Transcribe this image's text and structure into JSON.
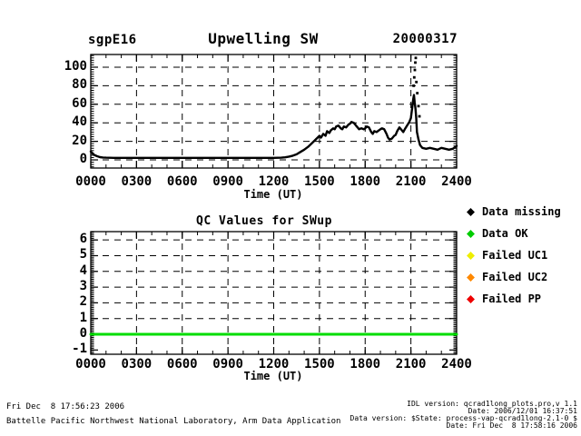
{
  "header": {
    "site": "sgpE16",
    "title": "Upwelling SW",
    "date": "20000317"
  },
  "chart_data": [
    {
      "type": "line",
      "title": "Upwelling SW",
      "xlabel": "Time (UT)",
      "ylabel": "",
      "xlim": [
        0,
        24
      ],
      "ylim": [
        -8.8,
        113.7
      ],
      "grid": "dashed",
      "x_major": [
        0,
        3,
        6,
        9,
        12,
        15,
        18,
        21,
        24
      ],
      "x_tick_labels": [
        "0000",
        "0300",
        "0600",
        "0900",
        "1200",
        "1500",
        "1800",
        "2100",
        "2400"
      ],
      "x_minor_step": 1,
      "y_major": [
        0,
        20,
        40,
        60,
        80,
        100
      ],
      "y_grid": [
        0,
        20,
        40,
        60,
        80,
        100
      ],
      "y_tick_labels": [
        "0",
        "20",
        "40",
        "60",
        "80",
        "100"
      ],
      "y_minor_step": 2.5,
      "series": [
        {
          "name": "upwelling-sw",
          "color": "#000000",
          "width": 2.4,
          "points": [
            [
              0,
              9
            ],
            [
              0.2,
              5.5
            ],
            [
              0.4,
              4
            ],
            [
              0.6,
              3
            ],
            [
              0.8,
              2.6
            ],
            [
              1,
              2.4
            ],
            [
              1.5,
              2.2
            ],
            [
              2,
              2.2
            ],
            [
              2.5,
              2.2
            ],
            [
              3,
              2.2
            ],
            [
              3.5,
              2.2
            ],
            [
              4,
              2.2
            ],
            [
              4.5,
              2.2
            ],
            [
              5,
              2.2
            ],
            [
              5.5,
              2.2
            ],
            [
              6,
              2.2
            ],
            [
              6.5,
              2.2
            ],
            [
              7,
              2.2
            ],
            [
              7.5,
              2.2
            ],
            [
              8,
              2.2
            ],
            [
              8.5,
              2.2
            ],
            [
              9,
              2.2
            ],
            [
              9.5,
              2.2
            ],
            [
              10,
              2.2
            ],
            [
              10.5,
              2.2
            ],
            [
              11,
              2.2
            ],
            [
              11.5,
              2.2
            ],
            [
              12,
              2.2
            ],
            [
              12.5,
              2.4
            ],
            [
              12.75,
              2.8
            ],
            [
              13,
              3.5
            ],
            [
              13.25,
              4.5
            ],
            [
              13.5,
              6
            ],
            [
              13.75,
              8.5
            ],
            [
              14,
              11
            ],
            [
              14.25,
              14
            ],
            [
              14.5,
              18
            ],
            [
              14.75,
              22
            ],
            [
              15,
              26
            ],
            [
              15.1,
              24
            ],
            [
              15.25,
              28
            ],
            [
              15.4,
              26
            ],
            [
              15.5,
              31
            ],
            [
              15.65,
              29
            ],
            [
              15.75,
              32
            ],
            [
              15.9,
              34
            ],
            [
              16,
              33
            ],
            [
              16.1,
              36
            ],
            [
              16.25,
              37
            ],
            [
              16.4,
              34
            ],
            [
              16.5,
              33
            ],
            [
              16.6,
              36
            ],
            [
              16.75,
              35
            ],
            [
              16.9,
              38
            ],
            [
              17,
              39
            ],
            [
              17.1,
              41
            ],
            [
              17.25,
              40
            ],
            [
              17.4,
              37
            ],
            [
              17.5,
              35
            ],
            [
              17.6,
              33
            ],
            [
              17.75,
              34
            ],
            [
              17.9,
              33
            ],
            [
              18,
              34
            ],
            [
              18.1,
              36
            ],
            [
              18.25,
              35
            ],
            [
              18.4,
              30
            ],
            [
              18.5,
              28
            ],
            [
              18.6,
              31
            ],
            [
              18.75,
              30
            ],
            [
              19,
              33
            ],
            [
              19.1,
              34
            ],
            [
              19.25,
              33
            ],
            [
              19.4,
              28
            ],
            [
              19.5,
              24
            ],
            [
              19.6,
              22
            ],
            [
              19.75,
              23
            ],
            [
              19.9,
              26
            ],
            [
              20,
              27
            ],
            [
              20.1,
              31
            ],
            [
              20.25,
              35
            ],
            [
              20.4,
              32
            ],
            [
              20.5,
              30
            ],
            [
              20.6,
              33
            ],
            [
              20.75,
              37
            ],
            [
              20.9,
              41
            ],
            [
              21,
              45
            ],
            [
              21.05,
              52
            ],
            [
              21.1,
              58
            ],
            [
              21.15,
              65
            ],
            [
              21.2,
              70
            ],
            [
              21.25,
              62
            ],
            [
              21.3,
              55
            ],
            [
              21.35,
              45
            ],
            [
              21.4,
              30
            ],
            [
              21.5,
              22
            ],
            [
              21.6,
              16
            ],
            [
              21.75,
              13
            ],
            [
              22,
              12
            ],
            [
              22.25,
              13
            ],
            [
              22.5,
              12
            ],
            [
              22.75,
              11
            ],
            [
              23,
              13
            ],
            [
              23.25,
              12
            ],
            [
              23.5,
              11
            ],
            [
              23.75,
              12
            ],
            [
              24,
              15
            ]
          ]
        }
      ],
      "outlier_points": {
        "name": "spike-dots-near-2100",
        "color": "#000000",
        "points": [
          [
            21.18,
            80
          ],
          [
            21.22,
            89
          ],
          [
            21.26,
            97
          ],
          [
            21.29,
            105
          ],
          [
            21.32,
            110
          ],
          [
            21.36,
            84
          ],
          [
            21.42,
            72
          ],
          [
            21.5,
            58
          ],
          [
            21.56,
            47
          ]
        ]
      }
    },
    {
      "type": "line",
      "title": "QC Values for SWup",
      "xlabel": "Time (UT)",
      "ylabel": "",
      "xlim": [
        0,
        24
      ],
      "ylim": [
        -1.27,
        6.53
      ],
      "grid": "dashed",
      "x_major": [
        0,
        3,
        6,
        9,
        12,
        15,
        18,
        21,
        24
      ],
      "x_tick_labels": [
        "0000",
        "0300",
        "0600",
        "0900",
        "1200",
        "1500",
        "1800",
        "2100",
        "2400"
      ],
      "x_minor_step": 1,
      "y_major": [
        -1,
        0,
        1,
        2,
        3,
        4,
        5,
        6
      ],
      "y_grid": [
        0,
        1,
        2,
        3,
        4,
        5,
        6
      ],
      "y_tick_labels": [
        "-1",
        "0",
        "1",
        "2",
        "3",
        "4",
        "5",
        "6"
      ],
      "y_minor_step": 0.1,
      "series": [
        {
          "name": "qc-swup",
          "color": "#00dd00",
          "width": 3,
          "points": [
            [
              0,
              0
            ],
            [
              24,
              0
            ]
          ]
        }
      ]
    }
  ],
  "legend": {
    "items": [
      {
        "label": "Data missing",
        "color": "#000000"
      },
      {
        "label": "Data OK",
        "color": "#00cc00"
      },
      {
        "label": "Failed UC1",
        "color": "#eeee00"
      },
      {
        "label": "Failed UC2",
        "color": "#ff8800"
      },
      {
        "label": "Failed PP",
        "color": "#ee0000"
      }
    ]
  },
  "footer": {
    "left_line1": "Fri Dec  8 17:56:23 2006",
    "left_line2": "Battelle Pacific Northwest National Laboratory, Arm Data Application",
    "right_line1": "IDL version: qcrad1long_plots.pro,v 1.1",
    "right_line2": "Date: 2006/12/01 16:37:51",
    "right_line3": "Data version: $State: process-vap-qcrad1long-2.1-0 $",
    "right_line4": "Date: Fri Dec  8 17:58:16 2006"
  }
}
